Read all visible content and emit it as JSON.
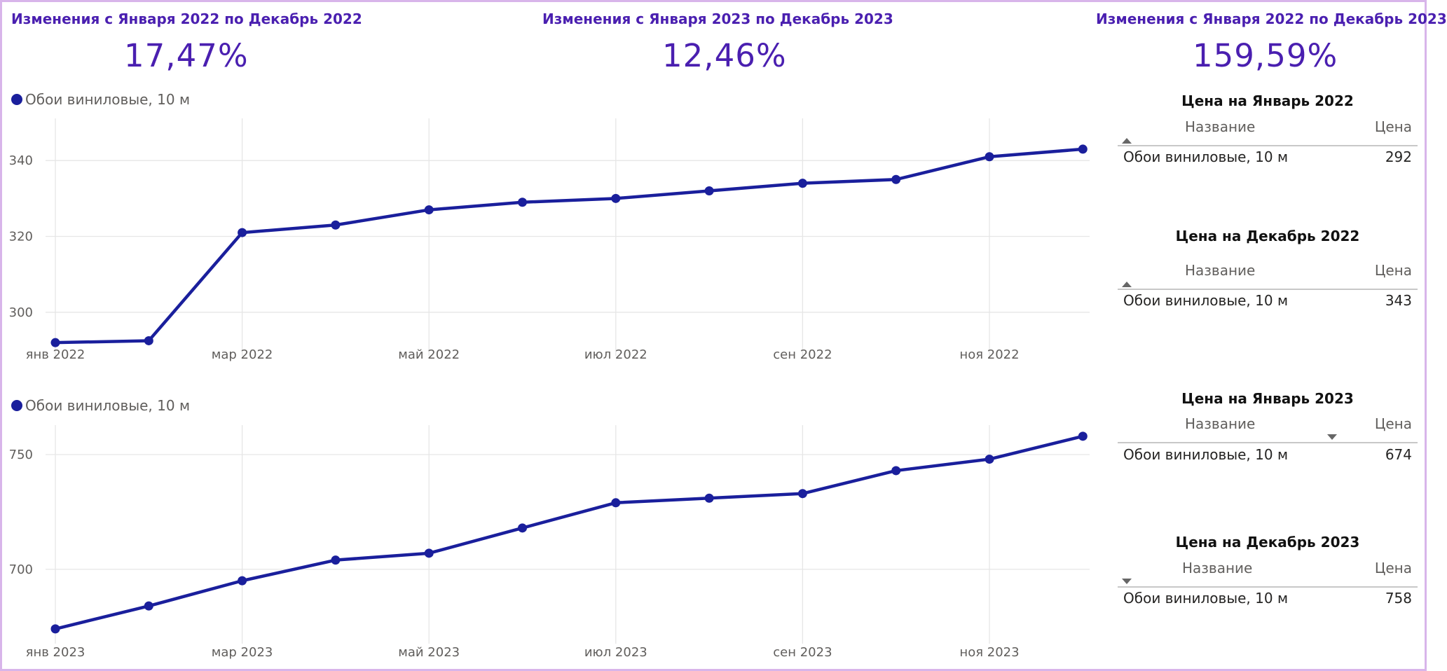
{
  "kpis": [
    {
      "title": "Изменения с Января 2022 по Декабрь 2022",
      "value": "17,47%"
    },
    {
      "title": "Изменения с Января 2023 по Декабрь 2023",
      "value": "12,46%"
    },
    {
      "title": "Изменения с Января 2022 по Декабрь 2023",
      "value": "159,59%"
    }
  ],
  "colors": {
    "accent": "#4a1fb0",
    "series": "#1a1f9c",
    "frame": "#d8b5ea"
  },
  "tables": [
    {
      "title": "Цена на Январь 2022",
      "col_name": "Название",
      "col_price": "Цена",
      "sort_icon": "sort-ascending-icon",
      "rows": [
        {
          "name": "Обои виниловые, 10 м",
          "price": "292"
        }
      ]
    },
    {
      "title": "Цена на Декабрь 2022",
      "col_name": "Название",
      "col_price": "Цена",
      "sort_icon": "sort-ascending-icon",
      "rows": [
        {
          "name": "Обои виниловые, 10 м",
          "price": "343"
        }
      ]
    },
    {
      "title": "Цена на Январь 2023",
      "col_name": "Название",
      "col_price": "Цена",
      "sort_icon": "sort-descending-icon",
      "rows": [
        {
          "name": "Обои виниловые, 10 м",
          "price": "674"
        }
      ]
    },
    {
      "title": "Цена на Декабрь 2023",
      "col_name": "Название",
      "col_price": "Цена",
      "sort_icon": "sort-descending-icon",
      "rows": [
        {
          "name": "Обои виниловые, 10 м",
          "price": "758"
        }
      ]
    }
  ],
  "chart_data": [
    {
      "type": "line",
      "legend": "Обои виниловые, 10 м",
      "legend_position": "top-left",
      "grid": true,
      "x": [
        "2022-01",
        "2022-02",
        "2022-03",
        "2022-04",
        "2022-05",
        "2022-06",
        "2022-07",
        "2022-08",
        "2022-09",
        "2022-10",
        "2022-11",
        "2022-12"
      ],
      "x_tick_labels": [
        "янв 2022",
        "мар 2022",
        "май 2022",
        "июл 2022",
        "сен 2022",
        "ноя 2022"
      ],
      "y_tick_labels": [
        "300",
        "320",
        "340"
      ],
      "series": [
        {
          "name": "Обои виниловые, 10 м",
          "values": [
            292,
            292.5,
            321,
            323,
            327,
            329,
            330,
            332,
            334,
            335,
            341,
            343
          ]
        }
      ],
      "ylim": [
        290,
        350
      ]
    },
    {
      "type": "line",
      "legend": "Обои виниловые, 10 м",
      "legend_position": "top-left",
      "grid": true,
      "x": [
        "2023-01",
        "2023-02",
        "2023-03",
        "2023-04",
        "2023-05",
        "2023-06",
        "2023-07",
        "2023-08",
        "2023-09",
        "2023-10",
        "2023-11",
        "2023-12"
      ],
      "x_tick_labels": [
        "янв 2023",
        "мар 2023",
        "май 2023",
        "июл 2023",
        "сен 2023",
        "ноя 2023"
      ],
      "y_tick_labels": [
        "700",
        "750"
      ],
      "series": [
        {
          "name": "Обои виниловые, 10 м",
          "values": [
            674,
            684,
            695,
            704,
            707,
            718,
            729,
            731,
            733,
            743,
            748,
            758
          ]
        }
      ],
      "ylim": [
        670,
        761
      ]
    }
  ]
}
